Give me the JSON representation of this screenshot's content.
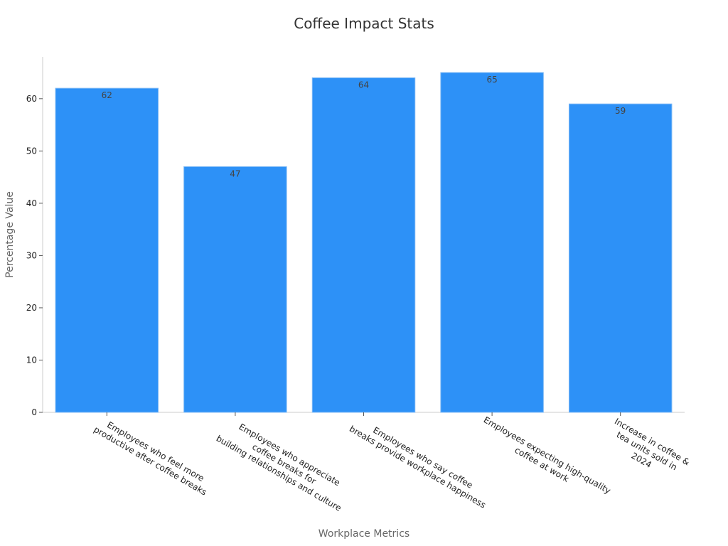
{
  "chart_data": {
    "type": "bar",
    "title": "Coffee Impact Stats",
    "xlabel": "Workplace Metrics",
    "ylabel": "Percentage Value",
    "categories": [
      [
        "Employees who feel more",
        "productive after coffee breaks"
      ],
      [
        "Employees who appreciate",
        "coffee breaks for",
        "building relationships and culture"
      ],
      [
        "Employees who say coffee",
        "breaks provide workplace happiness"
      ],
      [
        "Employees expecting high-quality",
        "coffee at work"
      ],
      [
        "Increase in coffee &",
        "tea units sold in",
        "2024"
      ]
    ],
    "values": [
      62,
      47,
      64,
      65,
      59
    ],
    "ylim": [
      0,
      68
    ],
    "yticks": [
      0,
      10,
      20,
      30,
      40,
      50,
      60
    ],
    "grid": false,
    "bar_color": "#2d91f7"
  }
}
